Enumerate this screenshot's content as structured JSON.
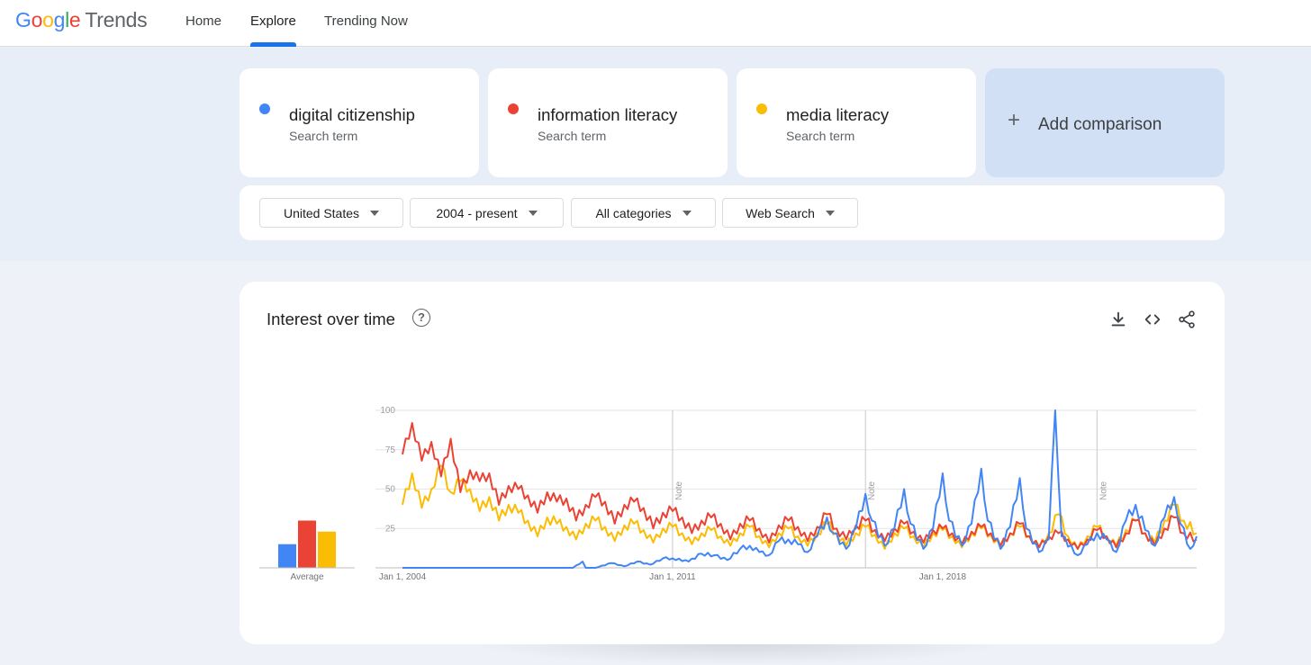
{
  "header": {
    "logo_google": [
      "G",
      "o",
      "o",
      "g",
      "l",
      "e"
    ],
    "logo_trends": "Trends",
    "nav": [
      {
        "label": "Home",
        "active": false
      },
      {
        "label": "Explore",
        "active": true
      },
      {
        "label": "Trending Now",
        "active": false
      }
    ]
  },
  "terms": [
    {
      "name": "digital citizenship",
      "type": "Search term",
      "color": "#4285f4"
    },
    {
      "name": "information literacy",
      "type": "Search term",
      "color": "#ea4335"
    },
    {
      "name": "media literacy",
      "type": "Search term",
      "color": "#fbbc04"
    }
  ],
  "add_comparison": {
    "plus": "+",
    "label": "Add comparison"
  },
  "filters": [
    {
      "label": "United States"
    },
    {
      "label": "2004 - present"
    },
    {
      "label": "All categories"
    },
    {
      "label": "Web Search"
    }
  ],
  "card": {
    "title": "Interest over time",
    "help_symbol": "?",
    "tools": [
      "download-icon",
      "embed-code-icon",
      "share-icon"
    ]
  },
  "chart_data": {
    "type": "line",
    "title": "Interest over time",
    "xlabel": "",
    "ylabel": "",
    "ylim": [
      0,
      100
    ],
    "yticks": [
      25,
      50,
      75,
      100
    ],
    "x_range": [
      "2004-01",
      "2024-08"
    ],
    "x_tick_labels": [
      {
        "label": "Jan 1, 2004",
        "date": "2004-01"
      },
      {
        "label": "Jan 1, 2011",
        "date": "2011-01"
      },
      {
        "label": "Jan 1, 2018",
        "date": "2018-01"
      }
    ],
    "notes": [
      {
        "label": "Note",
        "date": "2011-01"
      },
      {
        "label": "Note",
        "date": "2016-01"
      },
      {
        "label": "Note",
        "date": "2022-01"
      }
    ],
    "grid": true,
    "average_label": "Average",
    "averages": [
      {
        "series": "digital citizenship",
        "value": 15,
        "color": "#4285f4"
      },
      {
        "series": "information literacy",
        "value": 30,
        "color": "#ea4335"
      },
      {
        "series": "media literacy",
        "value": 23,
        "color": "#fbbc04"
      }
    ],
    "series": [
      {
        "name": "digital citizenship",
        "color": "#4285f4",
        "points": [
          [
            "2004-01",
            0
          ],
          [
            "2007-01",
            0
          ],
          [
            "2008-06",
            0
          ],
          [
            "2008-09",
            4
          ],
          [
            "2008-10",
            0
          ],
          [
            "2009-01",
            0
          ],
          [
            "2009-06",
            3
          ],
          [
            "2009-10",
            1
          ],
          [
            "2010-02",
            4
          ],
          [
            "2010-06",
            2
          ],
          [
            "2010-10",
            6
          ],
          [
            "2011-01",
            6
          ],
          [
            "2011-06",
            4
          ],
          [
            "2011-10",
            9
          ],
          [
            "2012-02",
            8
          ],
          [
            "2012-06",
            5
          ],
          [
            "2012-10",
            12
          ],
          [
            "2013-01",
            14
          ],
          [
            "2013-04",
            10
          ],
          [
            "2013-07",
            8
          ],
          [
            "2013-10",
            17
          ],
          [
            "2014-01",
            18
          ],
          [
            "2014-04",
            15
          ],
          [
            "2014-07",
            10
          ],
          [
            "2014-10",
            20
          ],
          [
            "2015-01",
            32
          ],
          [
            "2015-03",
            22
          ],
          [
            "2015-07",
            12
          ],
          [
            "2015-10",
            25
          ],
          [
            "2016-01",
            47
          ],
          [
            "2016-03",
            30
          ],
          [
            "2016-07",
            14
          ],
          [
            "2016-10",
            25
          ],
          [
            "2017-01",
            50
          ],
          [
            "2017-03",
            28
          ],
          [
            "2017-07",
            12
          ],
          [
            "2017-10",
            25
          ],
          [
            "2018-01",
            60
          ],
          [
            "2018-03",
            30
          ],
          [
            "2018-07",
            14
          ],
          [
            "2018-10",
            28
          ],
          [
            "2019-01",
            63
          ],
          [
            "2019-03",
            30
          ],
          [
            "2019-07",
            12
          ],
          [
            "2019-10",
            26
          ],
          [
            "2020-01",
            57
          ],
          [
            "2020-03",
            25
          ],
          [
            "2020-07",
            10
          ],
          [
            "2020-10",
            18
          ],
          [
            "2020-12",
            100
          ],
          [
            "2021-02",
            20
          ],
          [
            "2021-07",
            8
          ],
          [
            "2021-10",
            15
          ],
          [
            "2022-01",
            22
          ],
          [
            "2022-04",
            18
          ],
          [
            "2022-07",
            10
          ],
          [
            "2022-10",
            30
          ],
          [
            "2023-01",
            40
          ],
          [
            "2023-04",
            24
          ],
          [
            "2023-07",
            14
          ],
          [
            "2023-10",
            32
          ],
          [
            "2024-01",
            45
          ],
          [
            "2024-03",
            28
          ],
          [
            "2024-06",
            12
          ],
          [
            "2024-08",
            20
          ]
        ]
      },
      {
        "name": "information literacy",
        "color": "#ea4335",
        "points": [
          [
            "2004-01",
            72
          ],
          [
            "2004-04",
            92
          ],
          [
            "2004-07",
            68
          ],
          [
            "2004-10",
            80
          ],
          [
            "2005-01",
            58
          ],
          [
            "2005-04",
            82
          ],
          [
            "2005-07",
            48
          ],
          [
            "2005-10",
            62
          ],
          [
            "2006-01",
            55
          ],
          [
            "2006-04",
            60
          ],
          [
            "2006-07",
            40
          ],
          [
            "2006-10",
            52
          ],
          [
            "2007-01",
            50
          ],
          [
            "2007-04",
            46
          ],
          [
            "2007-07",
            35
          ],
          [
            "2007-10",
            48
          ],
          [
            "2008-01",
            42
          ],
          [
            "2008-04",
            44
          ],
          [
            "2008-07",
            30
          ],
          [
            "2008-10",
            40
          ],
          [
            "2009-01",
            45
          ],
          [
            "2009-04",
            42
          ],
          [
            "2009-07",
            28
          ],
          [
            "2009-10",
            40
          ],
          [
            "2010-01",
            42
          ],
          [
            "2010-04",
            38
          ],
          [
            "2010-07",
            25
          ],
          [
            "2010-10",
            35
          ],
          [
            "2011-01",
            36
          ],
          [
            "2011-04",
            32
          ],
          [
            "2011-07",
            22
          ],
          [
            "2011-10",
            30
          ],
          [
            "2012-01",
            32
          ],
          [
            "2012-04",
            28
          ],
          [
            "2012-07",
            18
          ],
          [
            "2012-10",
            28
          ],
          [
            "2013-01",
            30
          ],
          [
            "2013-04",
            25
          ],
          [
            "2013-07",
            16
          ],
          [
            "2013-10",
            27
          ],
          [
            "2014-01",
            30
          ],
          [
            "2014-04",
            26
          ],
          [
            "2014-07",
            17
          ],
          [
            "2014-10",
            26
          ],
          [
            "2015-01",
            34
          ],
          [
            "2015-04",
            25
          ],
          [
            "2015-07",
            18
          ],
          [
            "2015-10",
            27
          ],
          [
            "2016-01",
            30
          ],
          [
            "2016-04",
            24
          ],
          [
            "2016-07",
            17
          ],
          [
            "2016-10",
            25
          ],
          [
            "2017-01",
            28
          ],
          [
            "2017-04",
            23
          ],
          [
            "2017-07",
            16
          ],
          [
            "2017-10",
            24
          ],
          [
            "2018-01",
            25
          ],
          [
            "2018-04",
            22
          ],
          [
            "2018-07",
            15
          ],
          [
            "2018-10",
            23
          ],
          [
            "2019-01",
            26
          ],
          [
            "2019-04",
            22
          ],
          [
            "2019-07",
            14
          ],
          [
            "2019-10",
            22
          ],
          [
            "2020-01",
            28
          ],
          [
            "2020-04",
            20
          ],
          [
            "2020-07",
            13
          ],
          [
            "2020-10",
            20
          ],
          [
            "2021-01",
            22
          ],
          [
            "2021-04",
            18
          ],
          [
            "2021-07",
            12
          ],
          [
            "2021-10",
            18
          ],
          [
            "2022-01",
            24
          ],
          [
            "2022-04",
            20
          ],
          [
            "2022-07",
            13
          ],
          [
            "2022-10",
            22
          ],
          [
            "2023-01",
            30
          ],
          [
            "2023-04",
            22
          ],
          [
            "2023-07",
            14
          ],
          [
            "2023-10",
            25
          ],
          [
            "2024-01",
            32
          ],
          [
            "2024-04",
            22
          ],
          [
            "2024-08",
            18
          ]
        ]
      },
      {
        "name": "media literacy",
        "color": "#fbbc04",
        "points": [
          [
            "2004-01",
            40
          ],
          [
            "2004-04",
            60
          ],
          [
            "2004-07",
            38
          ],
          [
            "2004-10",
            50
          ],
          [
            "2005-01",
            65
          ],
          [
            "2005-04",
            48
          ],
          [
            "2005-07",
            55
          ],
          [
            "2005-10",
            50
          ],
          [
            "2006-01",
            36
          ],
          [
            "2006-04",
            45
          ],
          [
            "2006-07",
            30
          ],
          [
            "2006-10",
            40
          ],
          [
            "2007-01",
            35
          ],
          [
            "2007-04",
            30
          ],
          [
            "2007-07",
            20
          ],
          [
            "2007-10",
            32
          ],
          [
            "2008-01",
            28
          ],
          [
            "2008-04",
            26
          ],
          [
            "2008-07",
            18
          ],
          [
            "2008-10",
            28
          ],
          [
            "2009-01",
            30
          ],
          [
            "2009-04",
            26
          ],
          [
            "2009-07",
            17
          ],
          [
            "2009-10",
            27
          ],
          [
            "2010-01",
            28
          ],
          [
            "2010-04",
            24
          ],
          [
            "2010-07",
            16
          ],
          [
            "2010-10",
            25
          ],
          [
            "2011-01",
            26
          ],
          [
            "2011-04",
            22
          ],
          [
            "2011-07",
            15
          ],
          [
            "2011-10",
            22
          ],
          [
            "2012-01",
            24
          ],
          [
            "2012-04",
            20
          ],
          [
            "2012-07",
            14
          ],
          [
            "2012-10",
            22
          ],
          [
            "2013-01",
            26
          ],
          [
            "2013-04",
            20
          ],
          [
            "2013-07",
            13
          ],
          [
            "2013-10",
            22
          ],
          [
            "2014-01",
            25
          ],
          [
            "2014-04",
            20
          ],
          [
            "2014-07",
            14
          ],
          [
            "2014-10",
            22
          ],
          [
            "2015-01",
            28
          ],
          [
            "2015-04",
            22
          ],
          [
            "2015-07",
            14
          ],
          [
            "2015-10",
            22
          ],
          [
            "2016-01",
            26
          ],
          [
            "2016-04",
            21
          ],
          [
            "2016-07",
            12
          ],
          [
            "2016-10",
            22
          ],
          [
            "2017-01",
            25
          ],
          [
            "2017-04",
            20
          ],
          [
            "2017-07",
            13
          ],
          [
            "2017-10",
            22
          ],
          [
            "2018-01",
            24
          ],
          [
            "2018-04",
            20
          ],
          [
            "2018-07",
            13
          ],
          [
            "2018-10",
            22
          ],
          [
            "2019-01",
            25
          ],
          [
            "2019-04",
            21
          ],
          [
            "2019-07",
            13
          ],
          [
            "2019-10",
            22
          ],
          [
            "2020-01",
            26
          ],
          [
            "2020-04",
            20
          ],
          [
            "2020-07",
            13
          ],
          [
            "2020-10",
            22
          ],
          [
            "2021-01",
            34
          ],
          [
            "2021-04",
            20
          ],
          [
            "2021-07",
            12
          ],
          [
            "2021-10",
            20
          ],
          [
            "2022-01",
            26
          ],
          [
            "2022-04",
            20
          ],
          [
            "2022-07",
            14
          ],
          [
            "2022-10",
            24
          ],
          [
            "2023-01",
            30
          ],
          [
            "2023-04",
            22
          ],
          [
            "2023-07",
            16
          ],
          [
            "2023-10",
            30
          ],
          [
            "2024-01",
            40
          ],
          [
            "2024-04",
            30
          ],
          [
            "2024-08",
            22
          ]
        ]
      }
    ]
  }
}
